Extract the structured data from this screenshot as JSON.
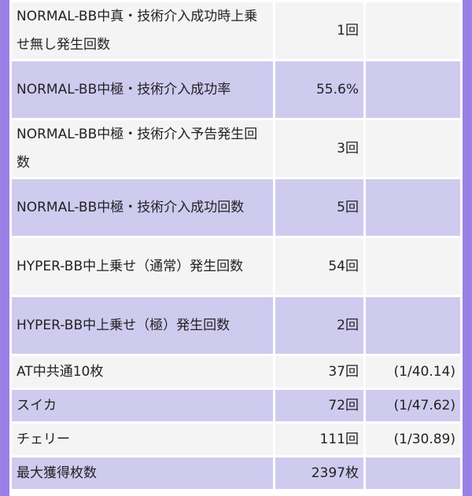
{
  "rows": [
    {
      "label": "NORMAL-BB中真・技術介入成功時上乗せ無し発生回数",
      "value": "1回",
      "ratio": ""
    },
    {
      "label": "NORMAL-BB中極・技術介入成功率",
      "value": "55.6%",
      "ratio": ""
    },
    {
      "label": "NORMAL-BB中極・技術介入予告発生回数",
      "value": "3回",
      "ratio": ""
    },
    {
      "label": "NORMAL-BB中極・技術介入成功回数",
      "value": "5回",
      "ratio": ""
    },
    {
      "label": "HYPER-BB中上乗せ（通常）発生回数",
      "value": "54回",
      "ratio": ""
    },
    {
      "label": "HYPER-BB中上乗せ（極）発生回数",
      "value": "2回",
      "ratio": ""
    },
    {
      "label": "AT中共通10枚",
      "value": "37回",
      "ratio": "(1/40.14)"
    },
    {
      "label": "スイカ",
      "value": "72回",
      "ratio": "(1/47.62)"
    },
    {
      "label": "チェリー",
      "value": "111回",
      "ratio": "(1/30.89)"
    },
    {
      "label": "最大獲得枚数",
      "value": "2397枚",
      "ratio": ""
    }
  ],
  "colors": {
    "frame": "#9a80e6",
    "row_light": "#f4f4f4",
    "row_shaded": "#cfcbef"
  }
}
